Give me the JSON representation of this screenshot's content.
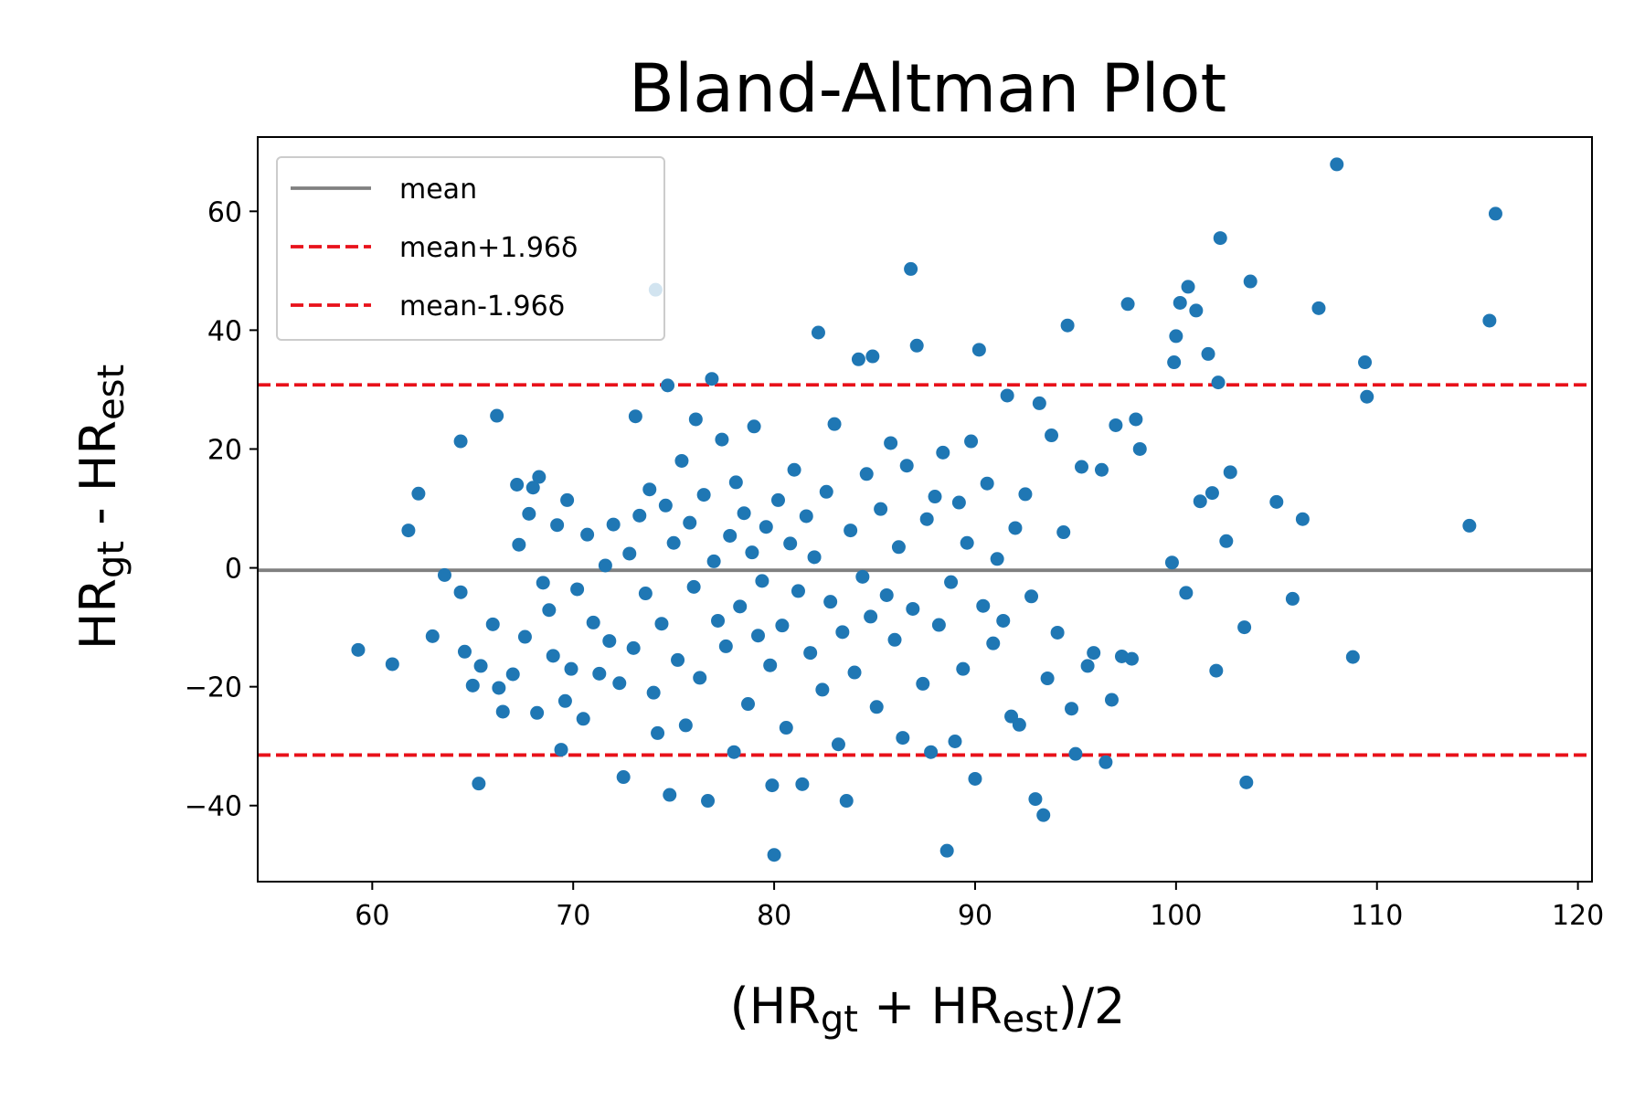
{
  "chart_data": {
    "type": "scatter",
    "title": "Bland-Altman Plot",
    "xlabel": {
      "base1": "(HR",
      "sub1": "gt",
      "mid": " + HR",
      "sub2": "est",
      "end": ")/2"
    },
    "ylabel": {
      "base1": "HR",
      "sub1": "gt",
      "mid": " - HR",
      "sub2": "est"
    },
    "xlim": [
      54.3,
      120.7
    ],
    "ylim": [
      -52.8,
      72.5
    ],
    "x_ticks": [
      60,
      70,
      80,
      90,
      100,
      110,
      120
    ],
    "y_ticks": [
      -40,
      -20,
      0,
      20,
      40,
      60
    ],
    "y_tick_labels": [
      "−40",
      "−20",
      "0",
      "20",
      "40",
      "60"
    ],
    "lines": [
      {
        "name": "mean",
        "y": -0.4,
        "color": "#808080",
        "style": "solid"
      },
      {
        "name": "mean+1.96δ",
        "y": 30.8,
        "color": "#e8111a",
        "style": "dashed"
      },
      {
        "name": "mean-1.96δ",
        "y": -31.5,
        "color": "#e8111a",
        "style": "dashed"
      }
    ],
    "legend": {
      "position": "top-left",
      "entries": [
        "mean",
        "mean+1.96δ",
        "mean-1.96δ"
      ]
    },
    "point_color": "#1f77b4",
    "points": [
      [
        59.3,
        -13.8
      ],
      [
        61.0,
        -16.2
      ],
      [
        61.8,
        6.3
      ],
      [
        62.3,
        12.5
      ],
      [
        63.0,
        -11.5
      ],
      [
        63.6,
        -1.2
      ],
      [
        64.4,
        21.3
      ],
      [
        64.4,
        -4.1
      ],
      [
        64.6,
        -14.1
      ],
      [
        65.0,
        -19.8
      ],
      [
        65.3,
        -36.3
      ],
      [
        65.4,
        -16.5
      ],
      [
        66.0,
        -9.5
      ],
      [
        66.2,
        25.6
      ],
      [
        66.3,
        -20.2
      ],
      [
        66.5,
        -24.2
      ],
      [
        67.0,
        -17.9
      ],
      [
        67.2,
        14.0
      ],
      [
        67.3,
        3.9
      ],
      [
        67.6,
        -11.6
      ],
      [
        67.8,
        9.1
      ],
      [
        68.0,
        13.5
      ],
      [
        68.2,
        -24.4
      ],
      [
        68.3,
        15.3
      ],
      [
        68.5,
        -2.5
      ],
      [
        68.8,
        -7.1
      ],
      [
        69.0,
        -14.8
      ],
      [
        69.2,
        7.2
      ],
      [
        69.4,
        -30.6
      ],
      [
        69.6,
        -22.4
      ],
      [
        69.7,
        11.4
      ],
      [
        69.9,
        -17.0
      ],
      [
        70.2,
        -3.6
      ],
      [
        70.5,
        -25.4
      ],
      [
        70.7,
        5.6
      ],
      [
        71.0,
        -9.2
      ],
      [
        71.3,
        -17.8
      ],
      [
        71.6,
        0.4
      ],
      [
        71.8,
        -12.3
      ],
      [
        72.0,
        7.3
      ],
      [
        72.3,
        -19.4
      ],
      [
        72.5,
        -35.2
      ],
      [
        72.8,
        2.4
      ],
      [
        73.0,
        -13.5
      ],
      [
        73.1,
        25.5
      ],
      [
        73.3,
        8.8
      ],
      [
        73.6,
        -4.3
      ],
      [
        73.8,
        13.2
      ],
      [
        74.0,
        -21.0
      ],
      [
        74.1,
        46.8
      ],
      [
        74.2,
        -27.8
      ],
      [
        74.4,
        -9.4
      ],
      [
        74.6,
        10.5
      ],
      [
        74.7,
        30.7
      ],
      [
        74.8,
        -38.2
      ],
      [
        75.0,
        4.2
      ],
      [
        75.2,
        -15.5
      ],
      [
        75.4,
        18.0
      ],
      [
        75.6,
        -26.5
      ],
      [
        75.8,
        7.6
      ],
      [
        76.0,
        -3.2
      ],
      [
        76.1,
        25.0
      ],
      [
        76.3,
        -18.5
      ],
      [
        76.5,
        12.3
      ],
      [
        76.7,
        -39.2
      ],
      [
        76.9,
        31.8
      ],
      [
        77.0,
        1.1
      ],
      [
        77.2,
        -8.9
      ],
      [
        77.4,
        21.6
      ],
      [
        77.6,
        -13.2
      ],
      [
        77.8,
        5.4
      ],
      [
        78.0,
        -31.0
      ],
      [
        78.1,
        14.4
      ],
      [
        78.3,
        -6.5
      ],
      [
        78.5,
        9.2
      ],
      [
        78.7,
        -22.9
      ],
      [
        78.9,
        2.6
      ],
      [
        79.0,
        23.8
      ],
      [
        79.2,
        -11.4
      ],
      [
        79.4,
        -2.2
      ],
      [
        79.6,
        6.9
      ],
      [
        79.8,
        -16.4
      ],
      [
        79.9,
        -36.6
      ],
      [
        80.0,
        -48.3
      ],
      [
        80.2,
        11.4
      ],
      [
        80.4,
        -9.7
      ],
      [
        80.6,
        -26.9
      ],
      [
        80.8,
        4.1
      ],
      [
        81.0,
        16.5
      ],
      [
        81.2,
        -3.9
      ],
      [
        81.4,
        -36.4
      ],
      [
        81.6,
        8.7
      ],
      [
        81.8,
        -14.3
      ],
      [
        82.0,
        1.8
      ],
      [
        82.2,
        39.6
      ],
      [
        82.4,
        -20.5
      ],
      [
        82.6,
        12.8
      ],
      [
        82.8,
        -5.7
      ],
      [
        83.0,
        24.2
      ],
      [
        83.2,
        -29.7
      ],
      [
        83.4,
        -10.8
      ],
      [
        83.6,
        -39.2
      ],
      [
        83.8,
        6.3
      ],
      [
        84.0,
        -17.6
      ],
      [
        84.2,
        35.1
      ],
      [
        84.4,
        -1.5
      ],
      [
        84.6,
        15.8
      ],
      [
        84.8,
        -8.2
      ],
      [
        84.9,
        35.6
      ],
      [
        85.1,
        -23.4
      ],
      [
        85.3,
        9.9
      ],
      [
        85.6,
        -4.6
      ],
      [
        85.8,
        21.0
      ],
      [
        86.0,
        -12.1
      ],
      [
        86.2,
        3.5
      ],
      [
        86.4,
        -28.6
      ],
      [
        86.6,
        17.2
      ],
      [
        86.8,
        50.3
      ],
      [
        86.9,
        -6.9
      ],
      [
        87.1,
        37.4
      ],
      [
        87.4,
        -19.5
      ],
      [
        87.6,
        8.2
      ],
      [
        87.8,
        -31.0
      ],
      [
        88.0,
        12.0
      ],
      [
        88.2,
        -9.6
      ],
      [
        88.4,
        19.4
      ],
      [
        88.6,
        -47.6
      ],
      [
        88.8,
        -2.4
      ],
      [
        89.0,
        -29.2
      ],
      [
        89.2,
        11.0
      ],
      [
        89.4,
        -17.0
      ],
      [
        89.6,
        4.2
      ],
      [
        89.8,
        21.3
      ],
      [
        90.0,
        -35.5
      ],
      [
        90.2,
        36.7
      ],
      [
        90.4,
        -6.4
      ],
      [
        90.6,
        14.2
      ],
      [
        90.9,
        -12.7
      ],
      [
        91.1,
        1.5
      ],
      [
        91.4,
        -8.9
      ],
      [
        91.6,
        29.0
      ],
      [
        91.8,
        -25.0
      ],
      [
        92.0,
        6.7
      ],
      [
        92.2,
        -26.4
      ],
      [
        92.5,
        12.4
      ],
      [
        92.8,
        -4.8
      ],
      [
        93.0,
        -38.9
      ],
      [
        93.2,
        27.7
      ],
      [
        93.4,
        -41.6
      ],
      [
        93.6,
        -18.6
      ],
      [
        93.8,
        22.3
      ],
      [
        94.1,
        -10.9
      ],
      [
        94.4,
        6.0
      ],
      [
        94.6,
        40.8
      ],
      [
        94.8,
        -23.7
      ],
      [
        95.0,
        -31.3
      ],
      [
        95.3,
        17.0
      ],
      [
        95.6,
        -16.5
      ],
      [
        95.9,
        -14.3
      ],
      [
        96.3,
        16.5
      ],
      [
        96.5,
        -32.7
      ],
      [
        96.8,
        -22.2
      ],
      [
        97.0,
        24.0
      ],
      [
        97.3,
        -14.9
      ],
      [
        97.6,
        44.4
      ],
      [
        97.8,
        -15.3
      ],
      [
        98.0,
        25.0
      ],
      [
        98.2,
        20.0
      ],
      [
        99.8,
        0.9
      ],
      [
        99.9,
        34.6
      ],
      [
        100.0,
        39.0
      ],
      [
        100.2,
        44.6
      ],
      [
        100.5,
        -4.2
      ],
      [
        100.6,
        47.3
      ],
      [
        101.0,
        43.3
      ],
      [
        101.2,
        11.2
      ],
      [
        101.6,
        36.0
      ],
      [
        101.8,
        12.6
      ],
      [
        102.0,
        -17.3
      ],
      [
        102.1,
        31.2
      ],
      [
        102.2,
        55.5
      ],
      [
        102.5,
        4.5
      ],
      [
        102.7,
        16.1
      ],
      [
        103.4,
        -10.0
      ],
      [
        103.5,
        -36.1
      ],
      [
        103.7,
        48.2
      ],
      [
        105.0,
        11.1
      ],
      [
        105.8,
        -5.2
      ],
      [
        106.3,
        8.2
      ],
      [
        107.1,
        43.7
      ],
      [
        108.0,
        67.9
      ],
      [
        108.8,
        -15.0
      ],
      [
        109.4,
        34.6
      ],
      [
        109.5,
        28.8
      ],
      [
        114.6,
        7.1
      ],
      [
        115.6,
        41.6
      ],
      [
        115.9,
        59.6
      ]
    ]
  }
}
